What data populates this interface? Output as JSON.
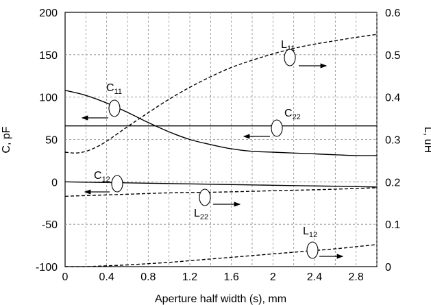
{
  "chart_data": {
    "type": "line",
    "xlabel": "Aperture half width (s), mm",
    "ylabel": "C, pF",
    "y2label": "L, uH",
    "xlim": [
      0,
      3.0
    ],
    "ylim": [
      -100,
      200
    ],
    "y2lim": [
      0,
      0.6
    ],
    "x_ticks": [
      "0",
      "0.4",
      "0.8",
      "1.2",
      "1.6",
      "2",
      "2.4",
      "2.8"
    ],
    "y_ticks": [
      "200",
      "150",
      "100",
      "50",
      "0",
      "-50",
      "-100"
    ],
    "y2_ticks": [
      "0.6",
      "0.5",
      "0.4",
      "0.3",
      "0.2",
      "0.1",
      "0"
    ],
    "grid": true,
    "series": [
      {
        "name": "C11",
        "axis": "left",
        "style": "solid",
        "x": [
          0,
          0.2,
          0.4,
          0.6,
          0.8,
          1.0,
          1.2,
          1.4,
          1.6,
          1.8,
          2.0,
          2.2,
          2.4,
          2.6,
          2.8,
          3.0
        ],
        "y": [
          108,
          102,
          93,
          82,
          70,
          59,
          50,
          44,
          39,
          36,
          35,
          34,
          33,
          32,
          31,
          31
        ]
      },
      {
        "name": "C22",
        "axis": "left",
        "style": "solid",
        "x": [
          0,
          0.5,
          1.0,
          1.5,
          2.0,
          2.5,
          3.0
        ],
        "y": [
          66,
          66,
          66,
          66,
          66,
          66,
          66
        ]
      },
      {
        "name": "C12",
        "axis": "left",
        "style": "solid",
        "x": [
          0,
          0.5,
          1.0,
          1.5,
          2.0,
          2.5,
          3.0
        ],
        "y": [
          0,
          -1,
          -2,
          -3,
          -4,
          -5,
          -6
        ]
      },
      {
        "name": "L11",
        "axis": "right",
        "style": "dashed",
        "x": [
          0,
          0.1,
          0.2,
          0.3,
          0.4,
          0.6,
          0.8,
          1.0,
          1.2,
          1.4,
          1.6,
          1.8,
          2.0,
          2.2,
          2.4,
          2.6,
          2.8,
          3.0
        ],
        "y": [
          0.27,
          0.268,
          0.272,
          0.282,
          0.296,
          0.33,
          0.363,
          0.395,
          0.423,
          0.448,
          0.47,
          0.487,
          0.502,
          0.515,
          0.525,
          0.533,
          0.541,
          0.548
        ]
      },
      {
        "name": "L22",
        "axis": "right",
        "style": "dashed",
        "x": [
          0,
          0.5,
          1.0,
          1.5,
          2.0,
          2.5,
          3.0
        ],
        "y": [
          0.166,
          0.17,
          0.174,
          0.176,
          0.179,
          0.182,
          0.186
        ]
      },
      {
        "name": "L12",
        "axis": "right",
        "style": "dashed",
        "x": [
          0,
          0.2,
          0.4,
          0.6,
          0.8,
          1.0,
          1.2,
          1.4,
          1.6,
          1.8,
          2.0,
          2.2,
          2.4,
          2.6,
          2.8,
          3.0
        ],
        "y": [
          0.0,
          0.0,
          0.002,
          0.004,
          0.007,
          0.01,
          0.014,
          0.018,
          0.022,
          0.026,
          0.03,
          0.034,
          0.038,
          0.042,
          0.047,
          0.052
        ]
      }
    ],
    "annotations": [
      {
        "id": "C11",
        "main": "C",
        "sub": "11",
        "direction": "left"
      },
      {
        "id": "C22",
        "main": "C",
        "sub": "22",
        "direction": "left"
      },
      {
        "id": "C12",
        "main": "C",
        "sub": "12",
        "direction": "left"
      },
      {
        "id": "L11",
        "main": "L",
        "sub": "11",
        "direction": "right"
      },
      {
        "id": "L22",
        "main": "L",
        "sub": "22",
        "direction": "right"
      },
      {
        "id": "L12",
        "main": "L",
        "sub": "12",
        "direction": "right"
      }
    ]
  }
}
